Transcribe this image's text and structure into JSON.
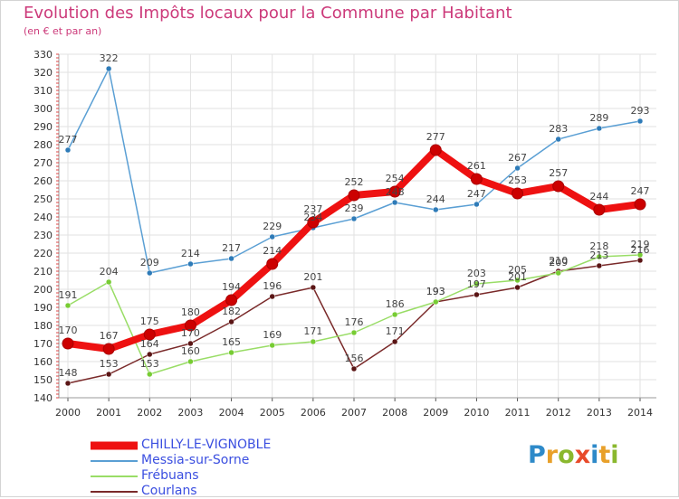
{
  "title": "Evolution des Impôts locaux pour la Commune par Habitant",
  "subtitle": "(en € et par an)",
  "brand": {
    "text": "Proxiti",
    "colors": [
      "#2e8ac9",
      "#e8a02a",
      "#8ab82e",
      "#e84a2a",
      "#2e8ac9",
      "#e8a02a",
      "#8ab82e"
    ]
  },
  "chart_data": {
    "type": "line",
    "title": "Evolution des Impôts locaux pour la Commune par Habitant",
    "subtitle": "(en € et par an)",
    "x": [
      "2000",
      "2001",
      "2002",
      "2003",
      "2004",
      "2005",
      "2006",
      "2007",
      "2008",
      "2009",
      "2010",
      "2011",
      "2012",
      "2013",
      "2014"
    ],
    "ylim": [
      140,
      330
    ],
    "yticks": [
      "140",
      "150",
      "160",
      "170",
      "180",
      "190",
      "200",
      "210",
      "220",
      "230",
      "240",
      "250",
      "260",
      "270",
      "280",
      "290",
      "300",
      "310",
      "320",
      "330"
    ],
    "grid": true,
    "legend_position": "bottom-left",
    "series": [
      {
        "name": "CHILLY-LE-VIGNOBLE",
        "color": "#ee1111",
        "marker": "#cc0000",
        "values": [
          170,
          167,
          175,
          180,
          194,
          214,
          237,
          252,
          254,
          277,
          261,
          253,
          257,
          244,
          247
        ],
        "labels": [
          "170",
          "167",
          "175",
          "180",
          "194",
          "214",
          "237",
          "252",
          "254",
          "277",
          "261",
          "253",
          "257",
          "244",
          "247"
        ]
      },
      {
        "name": "Messia-sur-Sorne",
        "color": "#5a9fd4",
        "marker": "#2e7bb8",
        "values": [
          277,
          322,
          209,
          214,
          217,
          229,
          234,
          239,
          248,
          244,
          247,
          267,
          283,
          289,
          293
        ],
        "labels": [
          "277",
          "322",
          "209",
          "214",
          "217",
          "229",
          "234",
          "239",
          "248",
          "244",
          "247",
          "267",
          "283",
          "289",
          "293"
        ]
      },
      {
        "name": "Frébuans",
        "color": "#99dd66",
        "marker": "#77cc33",
        "values": [
          191,
          204,
          153,
          160,
          165,
          169,
          171,
          176,
          186,
          193,
          203,
          205,
          209,
          218,
          219
        ],
        "labels": [
          "191",
          "204",
          "153",
          "160",
          "165",
          "169",
          "171",
          "176",
          "186",
          "193",
          "203",
          "205",
          "209",
          "218",
          "219"
        ]
      },
      {
        "name": "Courlans",
        "color": "#7a2a2a",
        "marker": "#5a1515",
        "values": [
          148,
          153,
          164,
          170,
          182,
          196,
          201,
          156,
          171,
          193,
          197,
          201,
          210,
          213,
          216
        ],
        "labels": [
          "148",
          "153",
          "164",
          "170",
          "182",
          "196",
          "201",
          "156",
          "171",
          "193",
          "197",
          "201",
          "210",
          "213",
          "216"
        ]
      }
    ]
  }
}
